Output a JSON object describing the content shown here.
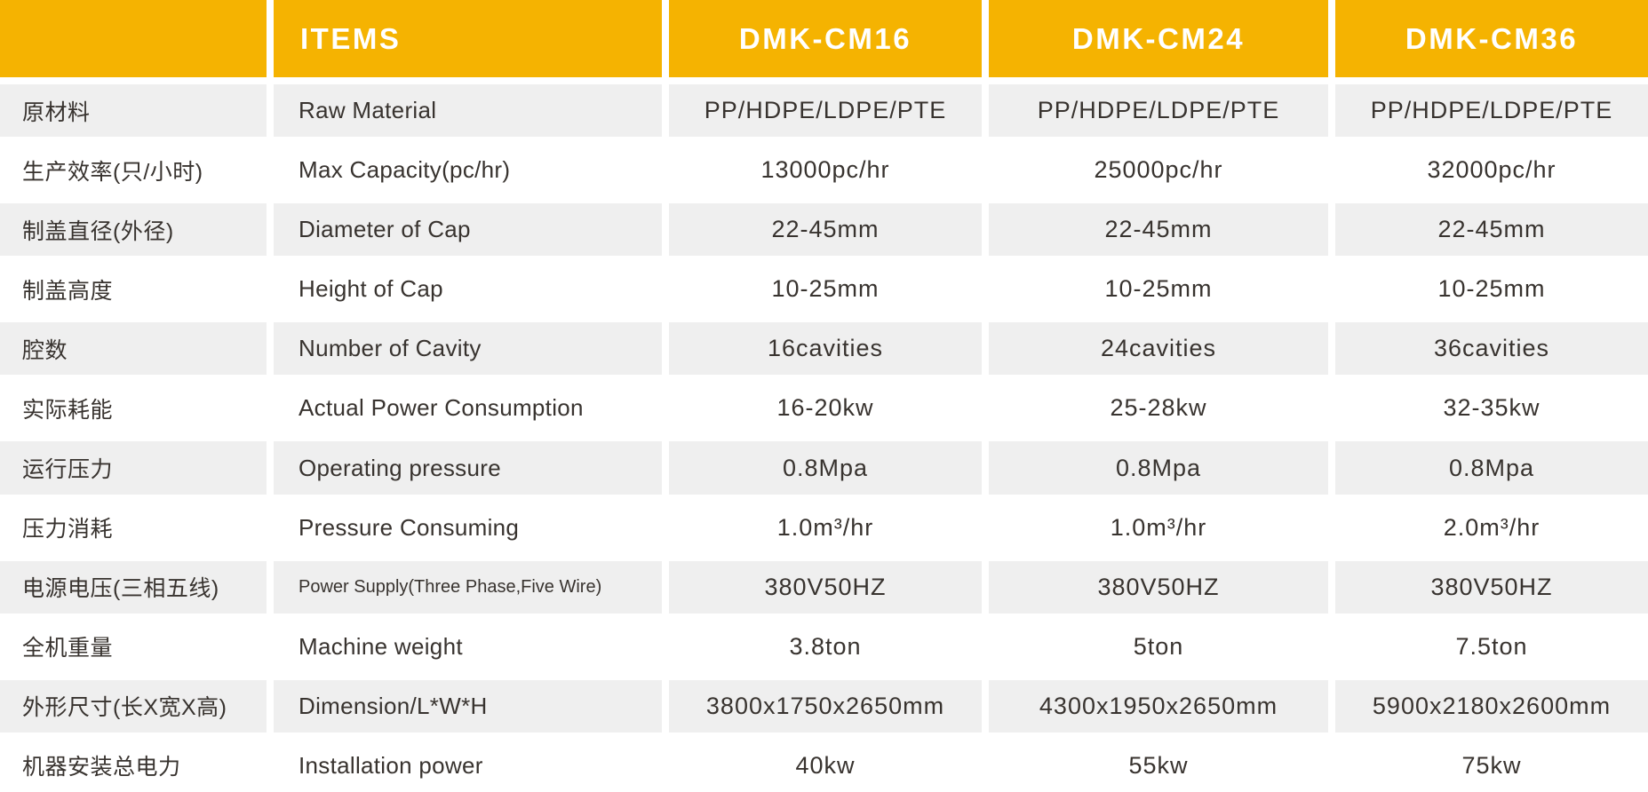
{
  "colors": {
    "header_bg": "#f5b301",
    "header_text": "#ffffff",
    "row_alt_bg": "#efefef",
    "body_text": "#38332f"
  },
  "chart_data": {
    "type": "table",
    "header": {
      "corner_label": "",
      "items_label": "ITEMS",
      "models": [
        "DMK-CM16",
        "DMK-CM24",
        "DMK-CM36"
      ]
    },
    "rows": [
      {
        "zh": "原材料",
        "en": "Raw Material",
        "values": [
          "PP/HDPE/LDPE/PTE",
          "PP/HDPE/LDPE/PTE",
          "PP/HDPE/LDPE/PTE"
        ]
      },
      {
        "zh": "生产效率(只/小时)",
        "en": "Max Capacity(pc/hr)",
        "values": [
          "13000pc/hr",
          "25000pc/hr",
          "32000pc/hr"
        ]
      },
      {
        "zh": "制盖直径(外径)",
        "en": "Diameter of Cap",
        "values": [
          "22-45mm",
          "22-45mm",
          "22-45mm"
        ]
      },
      {
        "zh": "制盖高度",
        "en": "Height of Cap",
        "values": [
          "10-25mm",
          "10-25mm",
          "10-25mm"
        ]
      },
      {
        "zh": "腔数",
        "en": "Number of Cavity",
        "values": [
          "16cavities",
          "24cavities",
          "36cavities"
        ]
      },
      {
        "zh": "实际耗能",
        "en": "Actual Power Consumption",
        "values": [
          "16-20kw",
          "25-28kw",
          "32-35kw"
        ]
      },
      {
        "zh": "运行压力",
        "en": "Operating pressure",
        "values": [
          "0.8Mpa",
          "0.8Mpa",
          "0.8Mpa"
        ]
      },
      {
        "zh": "压力消耗",
        "en": "Pressure Consuming",
        "values": [
          "1.0m³/hr",
          "1.0m³/hr",
          "2.0m³/hr"
        ]
      },
      {
        "zh": "电源电压(三相五线)",
        "en": "Power Supply(Three Phase,Five Wire)",
        "values": [
          "380V50HZ",
          "380V50HZ",
          "380V50HZ"
        ]
      },
      {
        "zh": "全机重量",
        "en": "Machine weight",
        "values": [
          "3.8ton",
          "5ton",
          "7.5ton"
        ]
      },
      {
        "zh": "外形尺寸(长X宽X高)",
        "en": "Dimension/L*W*H",
        "values": [
          "3800x1750x2650mm",
          "4300x1950x2650mm",
          "5900x2180x2600mm"
        ]
      },
      {
        "zh": "机器安装总电力",
        "en": "Installation power",
        "values": [
          "40kw",
          "55kw",
          "75kw"
        ]
      }
    ]
  }
}
